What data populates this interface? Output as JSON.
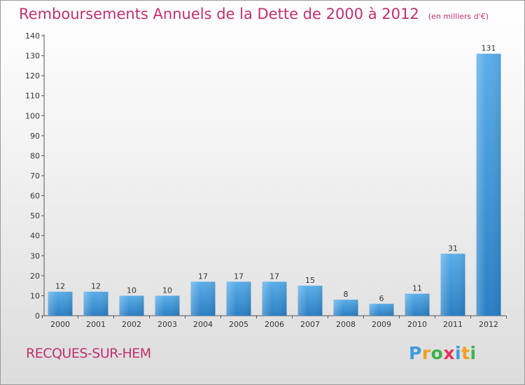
{
  "chart_data": {
    "type": "bar",
    "title": "Remboursements Annuels de la Dette de 2000 à 2012",
    "unit": "(en milliers d'€)",
    "categories": [
      "2000",
      "2001",
      "2002",
      "2003",
      "2004",
      "2005",
      "2006",
      "2007",
      "2008",
      "2009",
      "2010",
      "2011",
      "2012"
    ],
    "values": [
      12,
      12,
      10,
      10,
      17,
      17,
      17,
      15,
      8,
      6,
      11,
      31,
      131
    ],
    "ylim": [
      0,
      140
    ],
    "yticks": [
      0,
      10,
      20,
      30,
      40,
      50,
      60,
      70,
      80,
      90,
      100,
      110,
      120,
      130,
      140
    ],
    "grid": false,
    "bar_color_top": "#5aaee8",
    "bar_color_bottom": "#2a7fc4"
  },
  "footer": {
    "city": "RECQUES-SUR-HEM",
    "logo_letters": [
      "P",
      "r",
      "o",
      "x",
      "i",
      "t",
      "i"
    ]
  }
}
